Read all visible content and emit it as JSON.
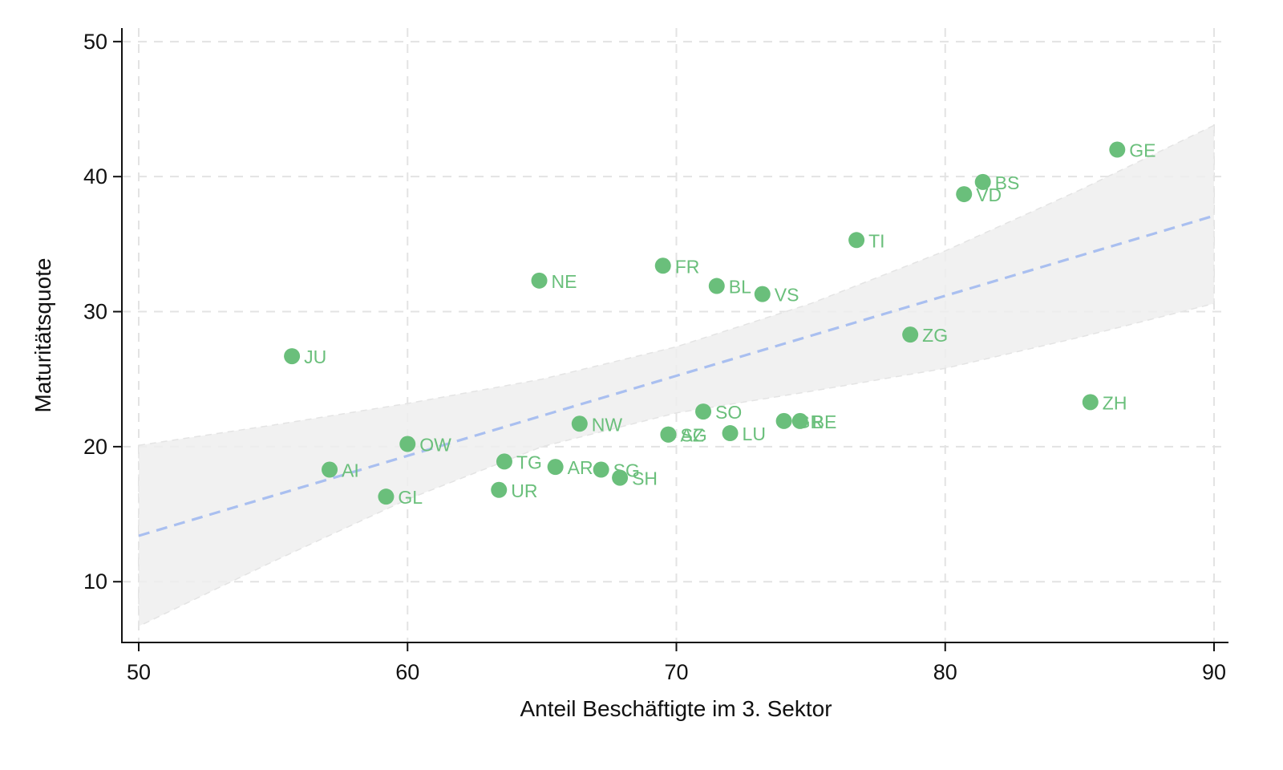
{
  "chart_data": {
    "type": "scatter",
    "title": "",
    "xlabel": "Anteil Beschäftigte im 3. Sektor",
    "ylabel": "Maturitätsquote",
    "xlim": [
      50,
      90
    ],
    "ylim": [
      5.5,
      51
    ],
    "xticks": [
      "50",
      "60",
      "70",
      "80",
      "90"
    ],
    "yticks": [
      "10",
      "20",
      "30",
      "40",
      "50"
    ],
    "grid": true,
    "legend": "none",
    "colors": {
      "points": "#6abf7b",
      "labels": "#6abf7b",
      "fit_line": "#a9bff0",
      "ci_band": "#eeeeee",
      "grid": "#e3e3e3",
      "axis": "#111111"
    },
    "points": [
      {
        "label": "JU",
        "x": 55.7,
        "y": 26.7
      },
      {
        "label": "AI",
        "x": 57.1,
        "y": 18.3
      },
      {
        "label": "GL",
        "x": 59.2,
        "y": 16.3
      },
      {
        "label": "OW",
        "x": 60.0,
        "y": 20.2
      },
      {
        "label": "UR",
        "x": 63.4,
        "y": 16.8
      },
      {
        "label": "TG",
        "x": 63.6,
        "y": 18.9
      },
      {
        "label": "NE",
        "x": 64.9,
        "y": 32.3
      },
      {
        "label": "AR",
        "x": 65.5,
        "y": 18.5
      },
      {
        "label": "NW",
        "x": 66.4,
        "y": 21.7
      },
      {
        "label": "SG",
        "x": 67.2,
        "y": 18.3
      },
      {
        "label": "SH",
        "x": 67.9,
        "y": 17.7
      },
      {
        "label": "FR",
        "x": 69.5,
        "y": 33.4
      },
      {
        "label": "SZ",
        "x": 69.7,
        "y": 20.9
      },
      {
        "label": "AG",
        "x": 69.7,
        "y": 20.9
      },
      {
        "label": "SO",
        "x": 71.0,
        "y": 22.6
      },
      {
        "label": "BL",
        "x": 71.5,
        "y": 31.9
      },
      {
        "label": "LU",
        "x": 72.0,
        "y": 21.0
      },
      {
        "label": "VS",
        "x": 73.2,
        "y": 31.3
      },
      {
        "label": "GR",
        "x": 74.0,
        "y": 21.9
      },
      {
        "label": "BE",
        "x": 74.6,
        "y": 21.9
      },
      {
        "label": "TI",
        "x": 76.7,
        "y": 35.3
      },
      {
        "label": "ZG",
        "x": 78.7,
        "y": 28.3
      },
      {
        "label": "VD",
        "x": 80.7,
        "y": 38.7
      },
      {
        "label": "BS",
        "x": 81.4,
        "y": 39.6
      },
      {
        "label": "ZH",
        "x": 85.4,
        "y": 23.3
      },
      {
        "label": "GE",
        "x": 86.4,
        "y": 42.0
      }
    ],
    "fit_line": {
      "x": [
        50,
        90
      ],
      "y": [
        13.4,
        37.1
      ]
    },
    "confidence_band": {
      "x": [
        50,
        55,
        60,
        65,
        70,
        75,
        80,
        85,
        90
      ],
      "upper": [
        20.1,
        21.6,
        23.2,
        25.0,
        27.4,
        30.6,
        34.5,
        39.0,
        43.8
      ],
      "lower": [
        6.7,
        11.5,
        16.1,
        20.0,
        22.5,
        24.1,
        25.8,
        28.1,
        30.6
      ]
    }
  }
}
